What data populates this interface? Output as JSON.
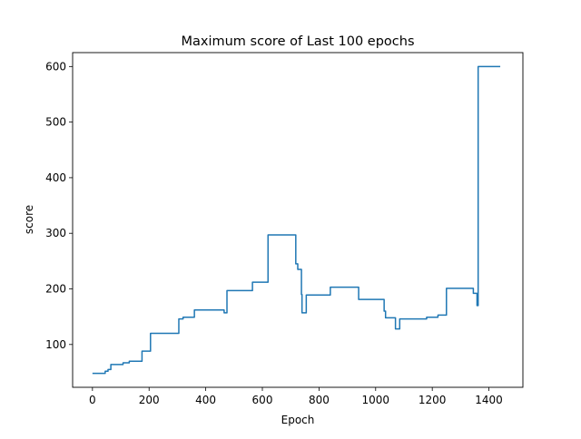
{
  "chart_data": {
    "type": "line",
    "title": "Maximum score of Last 100 epochs",
    "xlabel": "Epoch",
    "ylabel": "score",
    "xlim": [
      -70,
      1520
    ],
    "ylim": [
      23,
      625
    ],
    "xticks": [
      0,
      200,
      400,
      600,
      800,
      1000,
      1200,
      1400
    ],
    "yticks": [
      100,
      200,
      300,
      400,
      500,
      600
    ],
    "grid": false,
    "legend": "none",
    "series": [
      {
        "color": "#1f77b4",
        "x": [
          0,
          45,
          45,
          55,
          55,
          65,
          65,
          108,
          108,
          130,
          130,
          175,
          175,
          205,
          205,
          305,
          305,
          320,
          320,
          360,
          360,
          465,
          465,
          475,
          475,
          565,
          565,
          620,
          620,
          718,
          718,
          725,
          725,
          738,
          738,
          740,
          740,
          755,
          755,
          840,
          840,
          940,
          940,
          1030,
          1030,
          1035,
          1035,
          1070,
          1070,
          1085,
          1085,
          1180,
          1180,
          1220,
          1220,
          1250,
          1250,
          1345,
          1345,
          1358,
          1358,
          1362,
          1362,
          1365,
          1365,
          1440
        ],
        "y": [
          48,
          48,
          52,
          52,
          55,
          55,
          64,
          64,
          67,
          67,
          70,
          70,
          88,
          88,
          120,
          120,
          146,
          146,
          149,
          149,
          162,
          162,
          157,
          157,
          197,
          197,
          212,
          212,
          297,
          297,
          245,
          245,
          235,
          235,
          190,
          190,
          157,
          157,
          189,
          189,
          203,
          203,
          181,
          181,
          160,
          160,
          148,
          148,
          128,
          128,
          146,
          146,
          149,
          149,
          153,
          153,
          201,
          201,
          192,
          192,
          170,
          170,
          600,
          600,
          600,
          600
        ]
      }
    ]
  }
}
